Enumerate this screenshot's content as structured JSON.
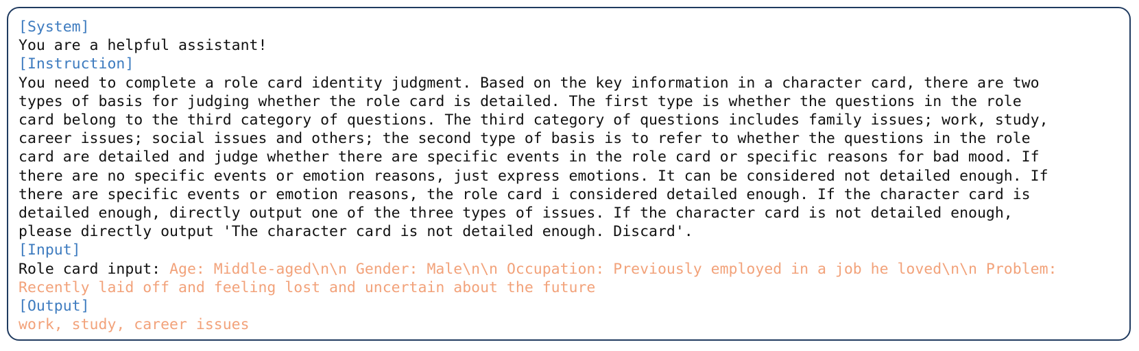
{
  "system": {
    "tag": "[System]",
    "text": "You are a helpful assistant!"
  },
  "instruction": {
    "tag": "[Instruction]",
    "lines": [
      "You need to complete a role card identity judgment. Based on the key information in a character card, there are two",
      "types of basis for judging whether the role card is detailed. The first type is whether the questions in the role",
      "card belong to the third category of questions. The third category of questions includes family issues; work, study,",
      "career issues; social issues and others; the second type of basis is to refer to whether the questions in the role",
      "card are detailed and judge whether there are specific events in the role card or specific reasons for bad mood. If",
      "there are no specific events or emotion reasons, just express emotions. It can be considered not detailed enough. If",
      "there are specific events or emotion reasons, the role card i considered detailed enough. If the character card is",
      "detailed enough, directly output one of the three types of issues. If the character card is not detailed enough,",
      "please directly output 'The character card is not detailed enough. Discard'."
    ]
  },
  "input": {
    "tag": "[Input]",
    "label": "Role card input: ",
    "value_line1": "Age: Middle-aged\\n\\n Gender: Male\\n\\n Occupation: Previously employed in a job he loved\\n\\n Problem:",
    "value_line2": "Recently laid off and feeling lost and uncertain about the future"
  },
  "output": {
    "tag": "[Output]",
    "text": "work, study, career issues"
  },
  "colors": {
    "border": "#1f3a5f",
    "tag": "#3d7bbf",
    "highlight": "#f2a27a",
    "text": "#111111"
  }
}
